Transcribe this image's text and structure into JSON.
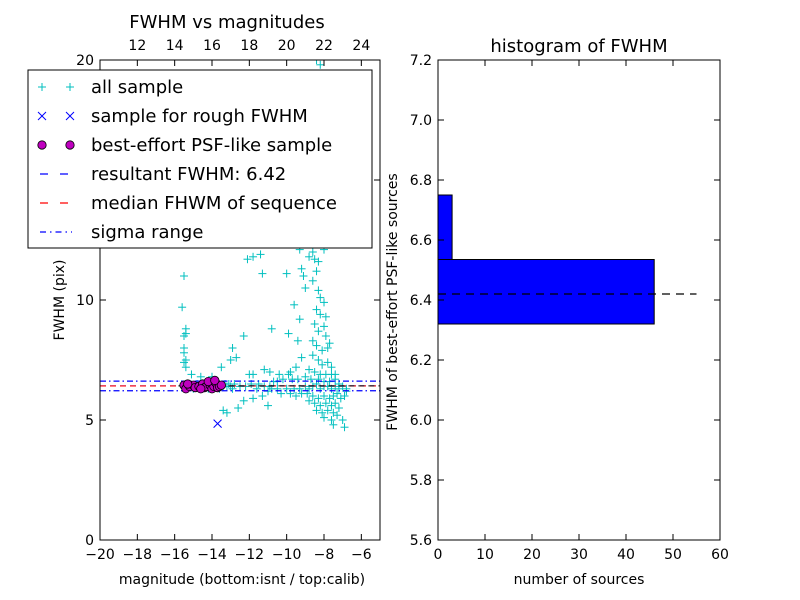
{
  "chart_data": [
    {
      "type": "scatter",
      "title": "FWHM vs magnitudes",
      "xlabel": "magnitude (bottom:isnt / top:calib)",
      "ylabel": "FWHM (pix)",
      "xlim": [
        -20,
        -5
      ],
      "ylim": [
        0,
        20
      ],
      "xticks": [
        -20,
        -18,
        -16,
        -14,
        -12,
        -10,
        -8,
        -6
      ],
      "xtick_labels": [
        "−20",
        "−18",
        "−16",
        "−14",
        "−12",
        "−10",
        "−8",
        "−6"
      ],
      "yticks": [
        0,
        5,
        10,
        15,
        20
      ],
      "ytick_labels": [
        "0",
        "5",
        "10",
        "15",
        "20"
      ],
      "top_xlim": [
        10,
        25
      ],
      "top_xticks": [
        12,
        14,
        16,
        18,
        20,
        22,
        24
      ],
      "top_xtick_labels": [
        "12",
        "14",
        "16",
        "18",
        "20",
        "22",
        "24"
      ],
      "legend_position": "upper-left",
      "legend": [
        {
          "label": "all sample",
          "marker": "+",
          "color": "#00bfbf"
        },
        {
          "label": "sample for rough FWHM",
          "marker": "x",
          "color": "#0000ff"
        },
        {
          "label": "best-effort PSF-like sample",
          "marker": "o",
          "color": "#bf00bf"
        },
        {
          "label": "resultant FWHM: 6.42",
          "line": "dashed",
          "color": "#0000ff"
        },
        {
          "label": "median FHWM of sequence",
          "line": "dashed",
          "color": "#ff0000"
        },
        {
          "label": "sigma range",
          "line": "dashdot",
          "color": "#0000ff"
        }
      ],
      "hlines": [
        {
          "name": "resultant FWHM",
          "y": 6.42,
          "color": "#0000ff",
          "style": "dashed"
        },
        {
          "name": "median FHWM of sequence",
          "y": 6.42,
          "color": "#ff0000",
          "style": "dashed"
        },
        {
          "name": "sigma range",
          "y": 6.62,
          "color": "#0000ff",
          "style": "dashdot"
        },
        {
          "name": "sigma range",
          "y": 6.22,
          "color": "#0000ff",
          "style": "dashdot"
        }
      ],
      "series": [
        {
          "name": "all sample",
          "color": "#00bfbf",
          "marker": "+",
          "points": [
            [
              -15.6,
              9.7
            ],
            [
              -15.5,
              11.0
            ],
            [
              -15.4,
              8.8
            ],
            [
              -15.5,
              8.5
            ],
            [
              -15.4,
              8.6
            ],
            [
              -15.5,
              8.0
            ],
            [
              -15.5,
              7.8
            ],
            [
              -15.4,
              7.5
            ],
            [
              -15.5,
              7.4
            ],
            [
              -15.4,
              7.2
            ],
            [
              -15.1,
              6.9
            ],
            [
              -14.6,
              6.8
            ],
            [
              -14.0,
              6.8
            ],
            [
              -13.5,
              7.2
            ],
            [
              -12.7,
              7.6
            ],
            [
              -12.3,
              8.5
            ],
            [
              -12.0,
              6.9
            ],
            [
              -11.8,
              6.9
            ],
            [
              -11.2,
              7.1
            ],
            [
              -10.8,
              8.8
            ],
            [
              -10.7,
              6.6
            ],
            [
              -13.4,
              5.4
            ],
            [
              -13.2,
              5.3
            ],
            [
              -12.6,
              5.5
            ],
            [
              -12.3,
              5.8
            ],
            [
              -11.8,
              5.9
            ],
            [
              -11.3,
              6.0
            ],
            [
              -11.0,
              5.6
            ],
            [
              -12.1,
              11.7
            ],
            [
              -11.8,
              11.8
            ],
            [
              -11.6,
              12.4
            ],
            [
              -11.4,
              11.9
            ],
            [
              -11.3,
              11.1
            ],
            [
              -9.9,
              8.6
            ],
            [
              -9.4,
              8.3
            ],
            [
              -9.2,
              7.6
            ],
            [
              -9.5,
              7.2
            ],
            [
              -9.8,
              7.0
            ],
            [
              -9.2,
              11.3
            ],
            [
              -9.1,
              11.0
            ],
            [
              -8.8,
              12.6
            ],
            [
              -8.6,
              12.0
            ],
            [
              -8.5,
              11.7
            ],
            [
              -8.8,
              11.8
            ],
            [
              -8.4,
              11.2
            ],
            [
              -8.3,
              11.6
            ],
            [
              -8.2,
              12.5
            ],
            [
              -8.0,
              12.1
            ],
            [
              -8.6,
              10.8
            ],
            [
              -8.3,
              10.4
            ],
            [
              -8.2,
              10.1
            ],
            [
              -8.0,
              9.9
            ],
            [
              -8.4,
              9.6
            ],
            [
              -8.2,
              9.4
            ],
            [
              -7.9,
              9.3
            ],
            [
              -8.5,
              9.0
            ],
            [
              -8.3,
              8.7
            ],
            [
              -8.0,
              8.9
            ],
            [
              -7.9,
              8.5
            ],
            [
              -8.6,
              8.3
            ],
            [
              -8.4,
              8.1
            ],
            [
              -8.1,
              7.9
            ],
            [
              -7.8,
              8.0
            ],
            [
              -8.6,
              7.7
            ],
            [
              -8.3,
              7.5
            ],
            [
              -8.1,
              7.3
            ],
            [
              -7.8,
              7.4
            ],
            [
              -7.6,
              7.2
            ],
            [
              -8.8,
              7.1
            ],
            [
              -8.5,
              7.0
            ],
            [
              -8.2,
              6.9
            ],
            [
              -7.9,
              6.9
            ],
            [
              -7.6,
              6.9
            ],
            [
              -7.4,
              6.9
            ],
            [
              -9.0,
              6.8
            ],
            [
              -8.7,
              6.7
            ],
            [
              -8.3,
              6.7
            ],
            [
              -8.0,
              6.6
            ],
            [
              -7.7,
              6.6
            ],
            [
              -7.4,
              6.7
            ],
            [
              -7.2,
              6.5
            ],
            [
              -8.9,
              6.1
            ],
            [
              -8.6,
              6.0
            ],
            [
              -8.3,
              5.9
            ],
            [
              -8.0,
              6.0
            ],
            [
              -7.7,
              5.9
            ],
            [
              -7.5,
              6.0
            ],
            [
              -7.3,
              6.1
            ],
            [
              -8.8,
              5.8
            ],
            [
              -8.5,
              5.7
            ],
            [
              -8.2,
              5.6
            ],
            [
              -7.9,
              5.7
            ],
            [
              -7.6,
              5.6
            ],
            [
              -7.4,
              5.7
            ],
            [
              -8.4,
              5.4
            ],
            [
              -8.1,
              5.3
            ],
            [
              -7.8,
              5.4
            ],
            [
              -7.5,
              5.3
            ],
            [
              -7.2,
              5.5
            ],
            [
              -8.0,
              5.1
            ],
            [
              -7.6,
              5.0
            ],
            [
              -7.3,
              5.2
            ],
            [
              -7.0,
              5.0
            ],
            [
              -7.5,
              4.8
            ],
            [
              -6.9,
              4.7
            ],
            [
              -7.1,
              5.9
            ],
            [
              -6.9,
              6.0
            ],
            [
              -6.8,
              6.2
            ],
            [
              -7.2,
              6.3
            ],
            [
              -8.5,
              14.4
            ],
            [
              -9.5,
              14.1
            ],
            [
              -9.1,
              13.7
            ],
            [
              -8.6,
              13.5
            ],
            [
              -8.9,
              13.9
            ],
            [
              -11.3,
              14.6
            ],
            [
              -10.2,
              16.0
            ],
            [
              -9.9,
              18.5
            ],
            [
              -8.4,
              20.0
            ],
            [
              -8.2,
              19.8
            ],
            [
              -10.0,
              11.1
            ],
            [
              -10.5,
              6.6
            ],
            [
              -10.2,
              6.7
            ],
            [
              -9.7,
              6.7
            ],
            [
              -9.4,
              6.7
            ],
            [
              -11.0,
              6.2
            ],
            [
              -10.3,
              6.1
            ],
            [
              -9.8,
              6.1
            ],
            [
              -9.5,
              6.0
            ],
            [
              -9.2,
              6.1
            ],
            [
              -10.8,
              6.3
            ],
            [
              -10.5,
              6.3
            ],
            [
              -10.0,
              6.3
            ],
            [
              -9.6,
              6.3
            ],
            [
              -9.3,
              6.3
            ],
            [
              -11.5,
              6.5
            ],
            [
              -11.2,
              6.4
            ],
            [
              -10.9,
              6.4
            ],
            [
              -12.5,
              6.4
            ],
            [
              -12.2,
              6.4
            ],
            [
              -11.9,
              6.5
            ],
            [
              -11.6,
              6.3
            ],
            [
              -12.8,
              6.5
            ],
            [
              -13.0,
              6.4
            ],
            [
              -12.9,
              6.3
            ],
            [
              -13.1,
              6.5
            ],
            [
              -15.5,
              6.4
            ],
            [
              -15.2,
              6.4
            ],
            [
              -15.0,
              6.3
            ],
            [
              -14.8,
              6.5
            ],
            [
              -14.6,
              6.4
            ],
            [
              -14.4,
              6.4
            ],
            [
              -14.2,
              6.3
            ],
            [
              -14.0,
              6.4
            ],
            [
              -13.8,
              6.5
            ],
            [
              -13.6,
              6.3
            ],
            [
              -13.4,
              6.4
            ],
            [
              -13.3,
              6.5
            ],
            [
              -13.2,
              6.4
            ],
            [
              -9.0,
              6.4
            ],
            [
              -8.8,
              6.3
            ],
            [
              -8.6,
              6.4
            ],
            [
              -8.4,
              6.5
            ],
            [
              -8.2,
              6.3
            ],
            [
              -8.0,
              6.4
            ],
            [
              -7.8,
              6.4
            ],
            [
              -7.6,
              6.3
            ],
            [
              -7.4,
              6.4
            ],
            [
              -7.2,
              6.5
            ],
            [
              -7.0,
              6.4
            ],
            [
              -6.8,
              6.3
            ],
            [
              -10.9,
              7.0
            ],
            [
              -10.4,
              6.9
            ],
            [
              -9.9,
              6.9
            ],
            [
              -12.9,
              8.0
            ],
            [
              -13.0,
              7.5
            ],
            [
              -9.3,
              9.2
            ],
            [
              -9.6,
              9.8
            ],
            [
              -9.0,
              10.5
            ],
            [
              -9.3,
              12.1
            ],
            [
              -7.7,
              8.2
            ]
          ]
        },
        {
          "name": "sample for rough FWHM",
          "color": "#0000ff",
          "marker": "x",
          "points": [
            [
              -13.7,
              4.85
            ]
          ]
        },
        {
          "name": "best-effort PSF-like sample",
          "color": "#bf00bf",
          "marker": "o",
          "points": [
            [
              -15.5,
              6.45
            ],
            [
              -15.4,
              6.3
            ],
            [
              -15.2,
              6.4
            ],
            [
              -15.0,
              6.45
            ],
            [
              -14.9,
              6.35
            ],
            [
              -14.7,
              6.4
            ],
            [
              -14.5,
              6.5
            ],
            [
              -14.4,
              6.35
            ],
            [
              -14.3,
              6.4
            ],
            [
              -14.1,
              6.45
            ],
            [
              -14.0,
              6.3
            ],
            [
              -13.9,
              6.4
            ],
            [
              -13.8,
              6.55
            ],
            [
              -13.7,
              6.35
            ],
            [
              -13.6,
              6.4
            ],
            [
              -13.5,
              6.45
            ],
            [
              -14.2,
              6.6
            ],
            [
              -13.85,
              6.65
            ],
            [
              -14.6,
              6.3
            ],
            [
              -15.3,
              6.5
            ]
          ]
        }
      ]
    },
    {
      "type": "bar",
      "orientation": "horizontal",
      "title": "histogram of FWHM",
      "xlabel": "number of sources",
      "ylabel": "FWHM of best-effort PSF-like sources",
      "xlim": [
        0,
        60
      ],
      "ylim": [
        5.6,
        7.2
      ],
      "xticks": [
        0,
        10,
        20,
        30,
        40,
        50,
        60
      ],
      "xtick_labels": [
        "0",
        "10",
        "20",
        "30",
        "40",
        "50",
        "60"
      ],
      "yticks": [
        5.6,
        5.8,
        6.0,
        6.2,
        6.4,
        6.6,
        6.8,
        7.0,
        7.2
      ],
      "ytick_labels": [
        "5.6",
        "5.8",
        "6.0",
        "6.2",
        "6.4",
        "6.6",
        "6.8",
        "7.0",
        "7.2"
      ],
      "bars": [
        {
          "y0": 6.32,
          "y1": 6.535,
          "value": 46
        },
        {
          "y0": 6.535,
          "y1": 6.75,
          "value": 3
        }
      ],
      "bar_color": "#0000ff",
      "hline": {
        "y": 6.42,
        "x0": 0,
        "x1": 55,
        "style": "dashed",
        "color": "#000000"
      }
    }
  ]
}
